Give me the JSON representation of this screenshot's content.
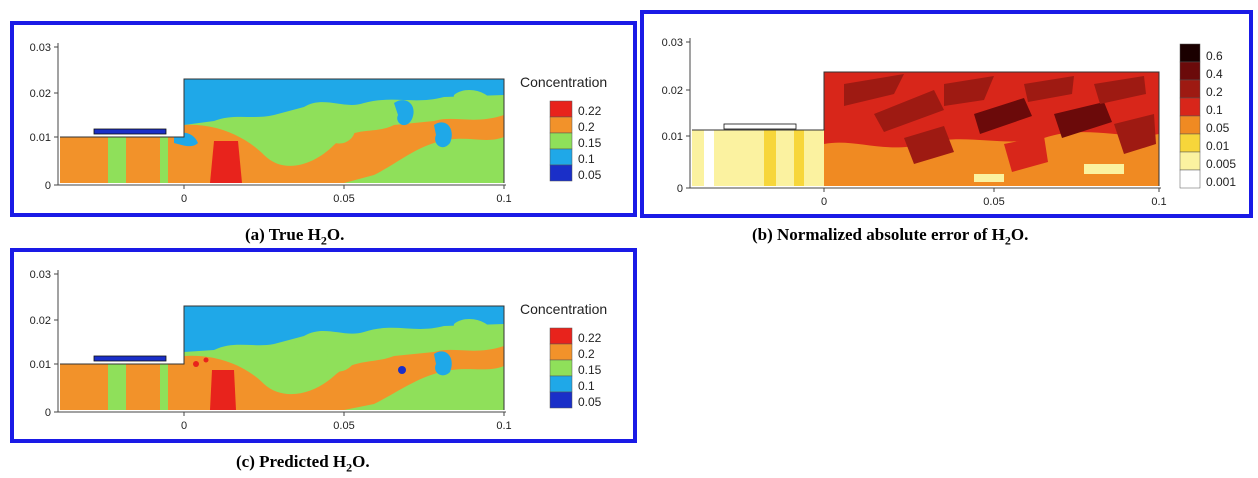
{
  "figure": {
    "panels": [
      {
        "id": "a",
        "caption_prefix": "(a)  True H",
        "caption_sub": "2",
        "caption_suffix": "O.",
        "y_ticks": [
          "0.03",
          "0.02",
          "0.01",
          "0"
        ],
        "x_ticks": [
          "0",
          "0.05",
          "0.1"
        ],
        "colorbar_title": "Concentration",
        "colorbar_levels": [
          "0.22",
          "0.2",
          "0.15",
          "0.1",
          "0.05"
        ],
        "colorbar_colors": [
          "#e8231c",
          "#f2922a",
          "#8fe05a",
          "#1fa8e8",
          "#1a2fc8"
        ]
      },
      {
        "id": "b",
        "caption_prefix": "(b)  Normalized absolute error of H",
        "caption_sub": "2",
        "caption_suffix": "O.",
        "y_ticks": [
          "0.03",
          "0.02",
          "0.01",
          "0"
        ],
        "x_ticks": [
          "0",
          "0.05",
          "0.1"
        ],
        "colorbar_levels": [
          "0.6",
          "0.4",
          "0.2",
          "0.1",
          "0.05",
          "0.01",
          "0.005",
          "0.001"
        ],
        "colorbar_colors": [
          "#1a0000",
          "#6b0a0a",
          "#9e1a12",
          "#d8261a",
          "#f08a22",
          "#f7d63a",
          "#fbf2a0",
          "#ffffff"
        ]
      },
      {
        "id": "c",
        "caption_prefix": "(c)  Predicted H",
        "caption_sub": "2",
        "caption_suffix": "O.",
        "y_ticks": [
          "0.03",
          "0.02",
          "0.01",
          "0"
        ],
        "x_ticks": [
          "0",
          "0.05",
          "0.1"
        ],
        "colorbar_title": "Concentration",
        "colorbar_levels": [
          "0.22",
          "0.2",
          "0.15",
          "0.1",
          "0.05"
        ],
        "colorbar_colors": [
          "#e8231c",
          "#f2922a",
          "#8fe05a",
          "#1fa8e8",
          "#1a2fc8"
        ]
      }
    ],
    "frame_color": "#1a1ae6"
  }
}
